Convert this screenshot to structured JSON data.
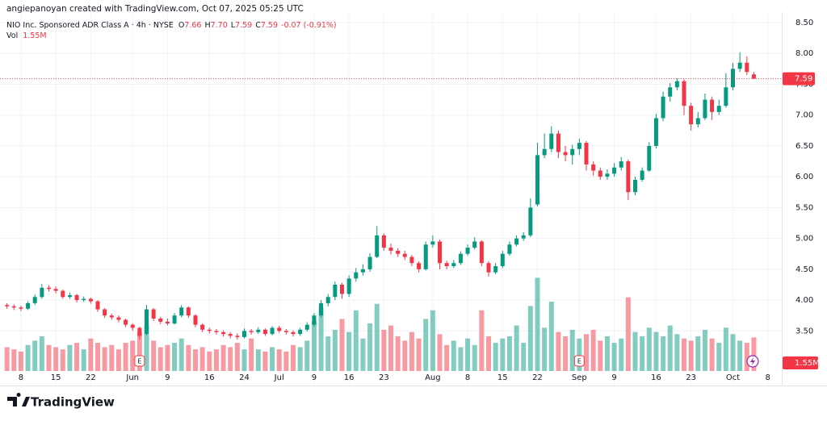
{
  "header": {
    "attribution": "angiepanoyan created with TradingView.com, Oct 07, 2025 05:25 UTC"
  },
  "brand": "TradingView",
  "chart_data": {
    "type": "candlestick",
    "symbol": "NIO Inc. Sponsored ADR Class A · 4h · NYSE",
    "ohlc_legend": [
      {
        "label": "O",
        "value": "7.66"
      },
      {
        "label": "H",
        "value": "7.70"
      },
      {
        "label": "L",
        "value": "7.59"
      },
      {
        "label": "C",
        "value": "7.59"
      }
    ],
    "change": "-0.07 (-0.91%)",
    "volume_title": "Vol",
    "volume_label": "1.55M",
    "up_color": "#089981",
    "down_color": "#f23645",
    "grid": true,
    "open": [
      3.92,
      3.9,
      3.88,
      3.86,
      3.95,
      4.05,
      4.2,
      4.18,
      4.15,
      4.05,
      4.08,
      4.0,
      4.02,
      3.98,
      3.85,
      3.75,
      3.72,
      3.68,
      3.6,
      3.55,
      3.45,
      3.85,
      3.7,
      3.65,
      3.62,
      3.75,
      3.88,
      3.75,
      3.6,
      3.52,
      3.5,
      3.48,
      3.45,
      3.42,
      3.4,
      3.5,
      3.48,
      3.52,
      3.45,
      3.55,
      3.5,
      3.48,
      3.45,
      3.52,
      3.6,
      3.75,
      3.95,
      4.05,
      4.25,
      4.1,
      4.35,
      4.45,
      4.5,
      4.7,
      5.05,
      4.85,
      4.8,
      4.75,
      4.7,
      4.6,
      4.5,
      4.9,
      4.95,
      4.6,
      4.55,
      4.6,
      4.75,
      4.85,
      4.95,
      4.6,
      4.45,
      4.55,
      4.75,
      4.9,
      5.0,
      5.05,
      5.55,
      6.35,
      6.45,
      6.7,
      6.4,
      6.35,
      6.45,
      6.55,
      6.2,
      6.1,
      6.0,
      6.05,
      6.15,
      6.25,
      5.75,
      5.95,
      6.1,
      6.5,
      6.95,
      7.3,
      7.45,
      7.55,
      7.15,
      6.85,
      6.95,
      7.25,
      7.05,
      7.15,
      7.45,
      7.75,
      7.85,
      7.66
    ],
    "high": [
      3.95,
      3.93,
      3.91,
      3.98,
      4.09,
      4.26,
      4.24,
      4.22,
      4.17,
      4.12,
      4.1,
      4.06,
      4.04,
      4.0,
      3.87,
      3.78,
      3.75,
      3.7,
      3.62,
      3.57,
      3.92,
      3.87,
      3.73,
      3.7,
      3.79,
      3.92,
      3.9,
      3.77,
      3.62,
      3.55,
      3.53,
      3.51,
      3.48,
      3.46,
      3.54,
      3.53,
      3.56,
      3.54,
      3.58,
      3.58,
      3.53,
      3.51,
      3.55,
      3.64,
      3.79,
      4.0,
      4.1,
      4.3,
      4.28,
      4.4,
      4.52,
      4.58,
      4.76,
      5.2,
      5.08,
      4.92,
      4.84,
      4.8,
      4.73,
      4.63,
      4.95,
      5.05,
      4.98,
      4.64,
      4.65,
      4.79,
      4.9,
      5.02,
      4.97,
      4.63,
      4.6,
      4.8,
      4.95,
      5.05,
      5.1,
      5.65,
      6.55,
      6.7,
      6.82,
      6.75,
      6.5,
      6.52,
      6.62,
      6.58,
      6.25,
      6.15,
      6.12,
      6.22,
      6.32,
      6.28,
      6.0,
      6.15,
      6.56,
      7.02,
      7.38,
      7.52,
      7.6,
      7.58,
      7.2,
      7.05,
      7.35,
      7.3,
      7.25,
      7.68,
      7.85,
      8.02,
      7.95,
      7.7
    ],
    "low": [
      3.86,
      3.84,
      3.82,
      3.84,
      3.92,
      4.02,
      4.14,
      4.11,
      4.02,
      4.02,
      3.96,
      3.97,
      3.94,
      3.81,
      3.71,
      3.68,
      3.64,
      3.56,
      3.5,
      3.36,
      3.43,
      3.66,
      3.61,
      3.59,
      3.6,
      3.72,
      3.71,
      3.56,
      3.48,
      3.46,
      3.44,
      3.41,
      3.38,
      3.36,
      3.38,
      3.44,
      3.45,
      3.42,
      3.43,
      3.47,
      3.44,
      3.41,
      3.42,
      3.49,
      3.57,
      3.72,
      3.9,
      4.0,
      4.02,
      4.05,
      4.3,
      4.4,
      4.46,
      4.68,
      4.8,
      4.74,
      4.7,
      4.65,
      4.55,
      4.45,
      4.48,
      4.85,
      4.5,
      4.5,
      4.52,
      4.57,
      4.72,
      4.82,
      4.55,
      4.38,
      4.42,
      4.52,
      4.72,
      4.87,
      4.96,
      5.02,
      5.52,
      6.3,
      6.4,
      6.3,
      6.25,
      6.2,
      6.35,
      6.1,
      6.02,
      5.95,
      5.95,
      6.0,
      6.1,
      5.62,
      5.7,
      5.92,
      6.08,
      6.46,
      6.9,
      7.22,
      7.4,
      7.0,
      6.75,
      6.8,
      6.92,
      6.92,
      7.0,
      7.12,
      7.4,
      7.7,
      7.65,
      7.59
    ],
    "close": [
      3.9,
      3.88,
      3.86,
      3.95,
      4.05,
      4.2,
      4.18,
      4.15,
      4.05,
      4.08,
      4.0,
      4.02,
      3.98,
      3.85,
      3.75,
      3.72,
      3.68,
      3.6,
      3.55,
      3.42,
      3.85,
      3.7,
      3.65,
      3.62,
      3.75,
      3.88,
      3.75,
      3.6,
      3.52,
      3.5,
      3.48,
      3.45,
      3.42,
      3.4,
      3.5,
      3.48,
      3.52,
      3.45,
      3.55,
      3.5,
      3.48,
      3.45,
      3.52,
      3.6,
      3.75,
      3.95,
      4.05,
      4.25,
      4.1,
      4.35,
      4.45,
      4.5,
      4.7,
      5.05,
      4.85,
      4.8,
      4.75,
      4.7,
      4.6,
      4.5,
      4.9,
      4.95,
      4.6,
      4.55,
      4.6,
      4.75,
      4.85,
      4.95,
      4.6,
      4.45,
      4.55,
      4.75,
      4.9,
      5.0,
      5.05,
      5.5,
      6.35,
      6.45,
      6.7,
      6.4,
      6.35,
      6.45,
      6.55,
      6.2,
      6.1,
      6.0,
      6.05,
      6.15,
      6.25,
      5.75,
      5.95,
      6.1,
      6.5,
      6.95,
      7.3,
      7.45,
      7.55,
      7.15,
      6.85,
      6.95,
      7.25,
      7.05,
      7.15,
      7.45,
      7.75,
      7.85,
      7.7,
      7.59
    ],
    "volume": [
      1100000,
      1000000,
      900000,
      1200000,
      1400000,
      1600000,
      1200000,
      1100000,
      1000000,
      1200000,
      1300000,
      1000000,
      1500000,
      1300000,
      1100000,
      1200000,
      1000000,
      1300000,
      1400000,
      1800000,
      2100000,
      1400000,
      1100000,
      1200000,
      1300000,
      1500000,
      1200000,
      1000000,
      1100000,
      900000,
      1000000,
      1200000,
      1100000,
      1300000,
      1000000,
      1500000,
      1000000,
      900000,
      1100000,
      1000000,
      900000,
      1200000,
      1100000,
      1400000,
      2300000,
      2900000,
      1600000,
      1900000,
      2400000,
      1800000,
      2800000,
      1500000,
      2200000,
      3100000,
      1900000,
      2100000,
      1600000,
      1400000,
      1800000,
      1500000,
      2400000,
      2800000,
      1700000,
      1200000,
      1400000,
      1100000,
      1500000,
      1200000,
      2800000,
      1600000,
      1300000,
      1500000,
      1600000,
      2100000,
      1300000,
      3000000,
      4300000,
      2000000,
      3200000,
      1800000,
      1600000,
      1900000,
      1500000,
      1700000,
      1900000,
      1400000,
      1600000,
      1300000,
      1500000,
      3400000,
      1800000,
      1600000,
      2000000,
      1800000,
      1600000,
      2100000,
      1700000,
      1500000,
      1400000,
      1600000,
      1900000,
      1500000,
      1300000,
      2000000,
      1700000,
      1400000,
      1300000,
      1550000
    ],
    "volume_ylim": [
      0,
      16000000
    ],
    "xlim": [
      -1,
      111
    ],
    "xticks": [
      {
        "value": 2,
        "label": "8"
      },
      {
        "value": 7,
        "label": "15"
      },
      {
        "value": 12,
        "label": "22"
      },
      {
        "value": 18,
        "label": "Jun"
      },
      {
        "value": 23,
        "label": "9"
      },
      {
        "value": 29,
        "label": "16"
      },
      {
        "value": 34,
        "label": "24"
      },
      {
        "value": 39,
        "label": "Jul"
      },
      {
        "value": 44,
        "label": "9"
      },
      {
        "value": 49,
        "label": "16"
      },
      {
        "value": 54,
        "label": "23"
      },
      {
        "value": 61,
        "label": "Aug"
      },
      {
        "value": 66,
        "label": "8"
      },
      {
        "value": 71,
        "label": "15"
      },
      {
        "value": 76,
        "label": "22"
      },
      {
        "value": 82,
        "label": "Sep"
      },
      {
        "value": 87,
        "label": "9"
      },
      {
        "value": 93,
        "label": "16"
      },
      {
        "value": 98,
        "label": "23"
      },
      {
        "value": 104,
        "label": "Oct"
      },
      {
        "value": 109,
        "label": "8"
      }
    ],
    "ylim": [
      2.85,
      8.67
    ],
    "yticks": [
      {
        "value": 3.5,
        "label": "3.50"
      },
      {
        "value": 4,
        "label": "4.00"
      },
      {
        "value": 4.5,
        "label": "4.50"
      },
      {
        "value": 5,
        "label": "5.00"
      },
      {
        "value": 5.5,
        "label": "5.50"
      },
      {
        "value": 6,
        "label": "6.00"
      },
      {
        "value": 6.5,
        "label": "6.50"
      },
      {
        "value": 7,
        "label": "7.00"
      },
      {
        "value": 7.5,
        "label": "7.50"
      },
      {
        "value": 8,
        "label": "8.00"
      },
      {
        "value": 8.5,
        "label": "8.50"
      }
    ],
    "events": [
      {
        "x": 19,
        "label": "E"
      },
      {
        "x": 82,
        "label": "E"
      }
    ]
  }
}
